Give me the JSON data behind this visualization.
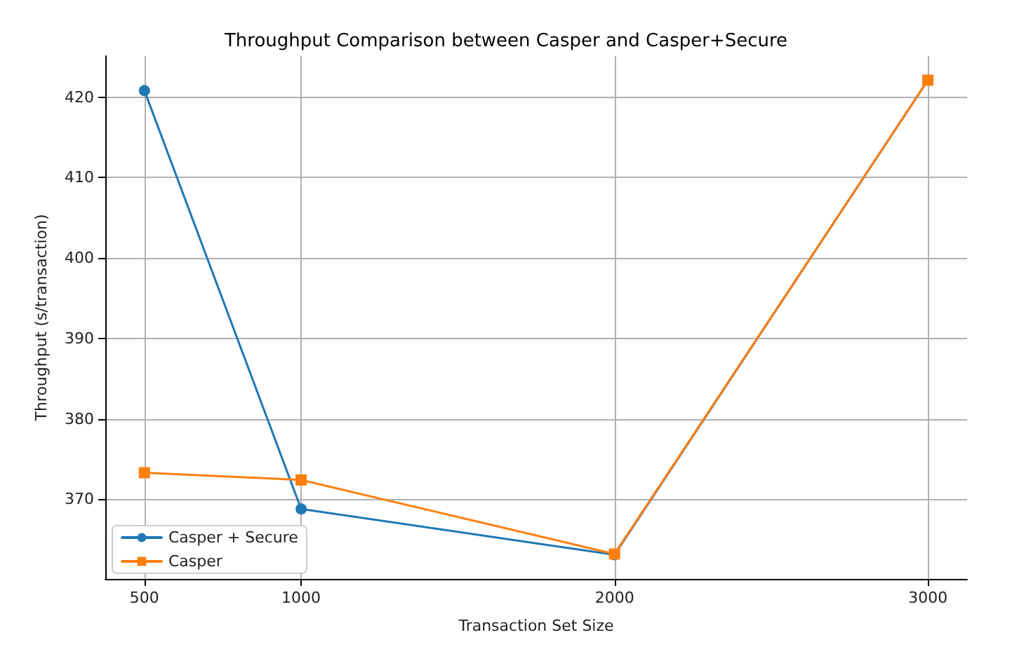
{
  "chart_data": {
    "type": "line",
    "title": "Throughput Comparison between Casper and Casper+Secure",
    "xlabel": "Transaction Set Size",
    "ylabel": "Throughput (s/transaction)",
    "x": [
      500,
      1000,
      2000,
      3000
    ],
    "series": [
      {
        "name": "Casper + Secure",
        "color": "#1f77b4",
        "marker": "circle",
        "values": [
          420.8,
          368.8,
          363.1,
          422.1
        ]
      },
      {
        "name": "Casper",
        "color": "#ff7f0e",
        "marker": "square",
        "values": [
          373.3,
          372.4,
          363.2,
          422.1
        ]
      }
    ],
    "xlim": [
      375,
      3125
    ],
    "xticks": [
      500,
      1000,
      2000,
      3000
    ],
    "ylim": [
      360.1,
      425.1
    ],
    "yticks": [
      370,
      380,
      390,
      400,
      410,
      420
    ],
    "grid": true,
    "legend": "bottom left",
    "line_style": "solid"
  }
}
